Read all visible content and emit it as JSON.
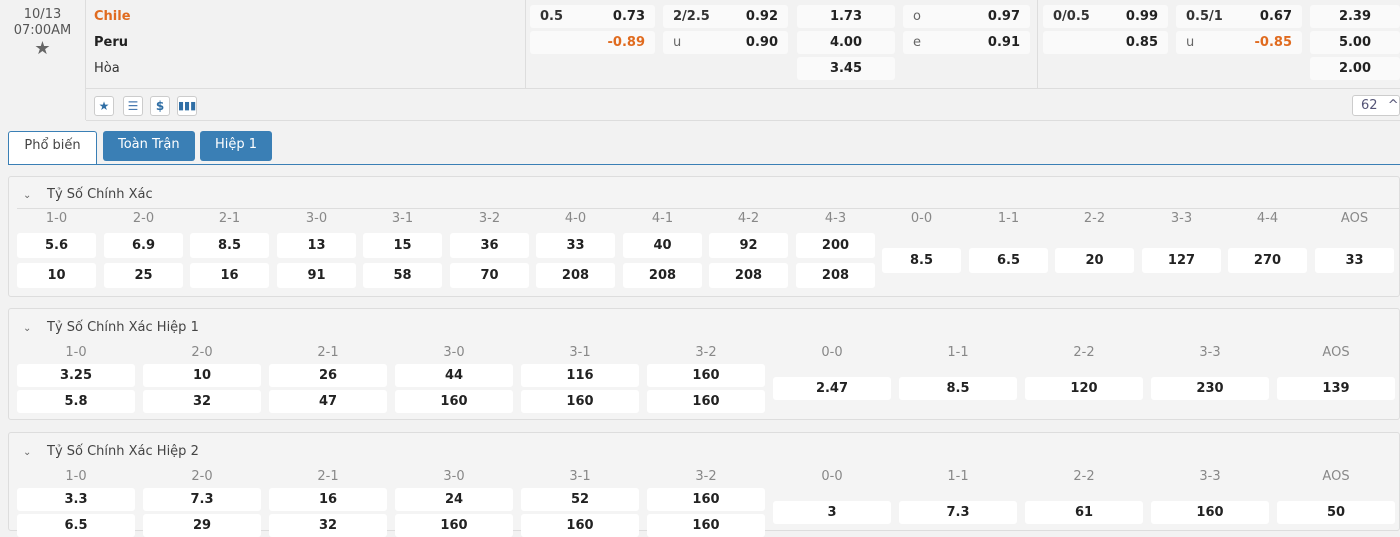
{
  "match": {
    "date": "10/13",
    "time": "07:00AM",
    "home": "Chile",
    "away": "Peru",
    "draw": "Hòa",
    "count": "62",
    "accent": "#e06b1f"
  },
  "odds": [
    {
      "rows": [
        {
          "l": "0.5",
          "r": "0.73"
        },
        {
          "l": "",
          "r": "-0.89"
        }
      ]
    },
    {
      "rows": [
        {
          "l": "2/2.5",
          "r": "0.92"
        },
        {
          "l": "u",
          "r": "0.90"
        }
      ]
    },
    {
      "rows": [
        {
          "c": "1.73"
        },
        {
          "c": "4.00"
        },
        {
          "c": "3.45"
        }
      ]
    },
    {
      "rows": [
        {
          "l": "o",
          "r": "0.97"
        },
        {
          "l": "e",
          "r": "0.91"
        }
      ]
    },
    {
      "rows": [
        {
          "l": "0/0.5",
          "r": "0.99"
        },
        {
          "l": "",
          "r": "0.85"
        }
      ]
    },
    {
      "rows": [
        {
          "l": "0.5/1",
          "r": "0.67"
        },
        {
          "l": "u",
          "r": "-0.85"
        }
      ]
    },
    {
      "rows": [
        {
          "c": "2.39"
        },
        {
          "c": "5.00"
        },
        {
          "c": "2.00"
        }
      ]
    }
  ],
  "tabs": [
    "Phổ biến",
    "Toàn Trận",
    "Hiệp 1"
  ],
  "sections": [
    {
      "title": "Tỷ Số Chính Xác",
      "win": [
        {
          "label": "1-0",
          "odds": [
            "5.6",
            "10"
          ]
        },
        {
          "label": "2-0",
          "odds": [
            "6.9",
            "25"
          ]
        },
        {
          "label": "2-1",
          "odds": [
            "8.5",
            "16"
          ]
        },
        {
          "label": "3-0",
          "odds": [
            "13",
            "91"
          ]
        },
        {
          "label": "3-1",
          "odds": [
            "15",
            "58"
          ]
        },
        {
          "label": "3-2",
          "odds": [
            "36",
            "70"
          ]
        },
        {
          "label": "4-0",
          "odds": [
            "33",
            "208"
          ]
        },
        {
          "label": "4-1",
          "odds": [
            "40",
            "208"
          ]
        },
        {
          "label": "4-2",
          "odds": [
            "92",
            "208"
          ]
        },
        {
          "label": "4-3",
          "odds": [
            "200",
            "208"
          ]
        }
      ],
      "draw": [
        {
          "label": "0-0",
          "odds": "8.5"
        },
        {
          "label": "1-1",
          "odds": "6.5"
        },
        {
          "label": "2-2",
          "odds": "20"
        },
        {
          "label": "3-3",
          "odds": "127"
        },
        {
          "label": "4-4",
          "odds": "270"
        },
        {
          "label": "AOS",
          "odds": "33"
        }
      ]
    },
    {
      "title": "Tỷ Số Chính Xác Hiệp 1",
      "win": [
        {
          "label": "1-0",
          "odds": [
            "3.25",
            "5.8"
          ]
        },
        {
          "label": "2-0",
          "odds": [
            "10",
            "32"
          ]
        },
        {
          "label": "2-1",
          "odds": [
            "26",
            "47"
          ]
        },
        {
          "label": "3-0",
          "odds": [
            "44",
            "160"
          ]
        },
        {
          "label": "3-1",
          "odds": [
            "116",
            "160"
          ]
        },
        {
          "label": "3-2",
          "odds": [
            "160",
            "160"
          ]
        }
      ],
      "draw": [
        {
          "label": "0-0",
          "odds": "2.47"
        },
        {
          "label": "1-1",
          "odds": "8.5"
        },
        {
          "label": "2-2",
          "odds": "120"
        },
        {
          "label": "3-3",
          "odds": "230"
        },
        {
          "label": "AOS",
          "odds": "139"
        }
      ]
    },
    {
      "title": "Tỷ Số Chính Xác Hiệp 2",
      "win": [
        {
          "label": "1-0",
          "odds": [
            "3.3",
            "6.5"
          ]
        },
        {
          "label": "2-0",
          "odds": [
            "7.3",
            "29"
          ]
        },
        {
          "label": "2-1",
          "odds": [
            "16",
            "32"
          ]
        },
        {
          "label": "3-0",
          "odds": [
            "24",
            "160"
          ]
        },
        {
          "label": "3-1",
          "odds": [
            "52",
            "160"
          ]
        },
        {
          "label": "3-2",
          "odds": [
            "160",
            "160"
          ]
        }
      ],
      "draw": [
        {
          "label": "0-0",
          "odds": "3"
        },
        {
          "label": "1-1",
          "odds": "7.3"
        },
        {
          "label": "2-2",
          "odds": "61"
        },
        {
          "label": "3-3",
          "odds": "160"
        },
        {
          "label": "AOS",
          "odds": "50"
        }
      ]
    }
  ]
}
